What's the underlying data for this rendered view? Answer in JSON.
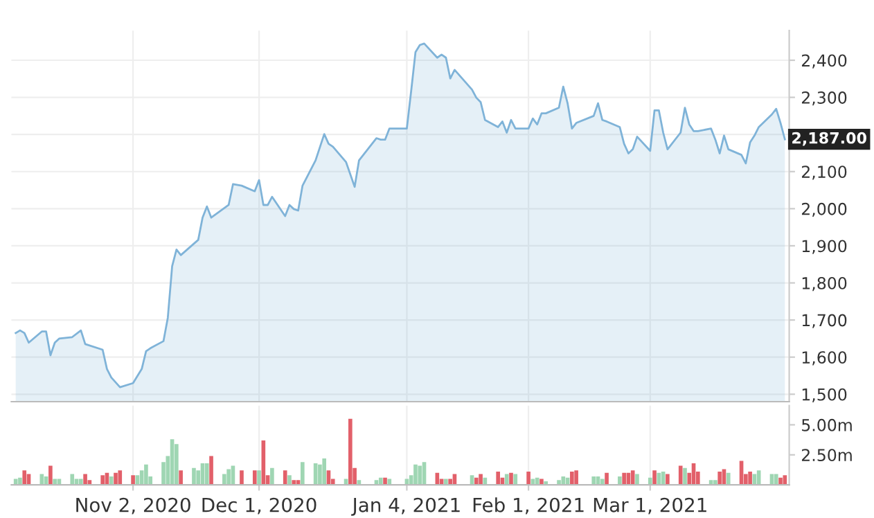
{
  "chart_data": [
    {
      "type": "area",
      "xlim": [
        "2020-10-05",
        "2021-04-02"
      ],
      "xticks": [
        {
          "value": "2020-11-02",
          "label": null
        },
        {
          "value": "2020-12-01",
          "label": null
        },
        {
          "value": "2021-01-04",
          "label": null
        },
        {
          "value": "2021-02-01",
          "label": null
        },
        {
          "value": "2021-03-01",
          "label": null
        }
      ],
      "ylim": [
        1480,
        2480
      ],
      "yticks": [
        {
          "value": 1500,
          "label": "1,500"
        },
        {
          "value": 1600,
          "label": "1,600"
        },
        {
          "value": 1700,
          "label": "1,700"
        },
        {
          "value": 1800,
          "label": "1,800"
        },
        {
          "value": 1900,
          "label": "1,900"
        },
        {
          "value": 2000,
          "label": "2,000"
        },
        {
          "value": 2100,
          "label": "2,100"
        },
        {
          "value": 2200,
          "label": null
        },
        {
          "value": 2300,
          "label": "2,300"
        },
        {
          "value": 2400,
          "label": "2,400"
        }
      ],
      "tick_labels": "y",
      "grid": true,
      "annotations": [
        "2,187.00"
      ],
      "series": [
        {
          "color": "#7fb3d8",
          "x": [
            "2020-10-06",
            "2020-10-07",
            "2020-10-08",
            "2020-10-09",
            "2020-10-12",
            "2020-10-13",
            "2020-10-14",
            "2020-10-15",
            "2020-10-16",
            "2020-10-19",
            "2020-10-21",
            "2020-10-22",
            "2020-10-26",
            "2020-10-27",
            "2020-10-28",
            "2020-10-30",
            "2020-11-02",
            "2020-11-04",
            "2020-11-05",
            "2020-11-06",
            "2020-11-09",
            "2020-11-10",
            "2020-11-11",
            "2020-11-12",
            "2020-11-13",
            "2020-11-17",
            "2020-11-18",
            "2020-11-19",
            "2020-11-20",
            "2020-11-24",
            "2020-11-25",
            "2020-11-27",
            "2020-11-30",
            "2020-12-01",
            "2020-12-02",
            "2020-12-03",
            "2020-12-04",
            "2020-12-07",
            "2020-12-08",
            "2020-12-09",
            "2020-12-10",
            "2020-12-11",
            "2020-12-14",
            "2020-12-16",
            "2020-12-17",
            "2020-12-18",
            "2020-12-21",
            "2020-12-23",
            "2020-12-24",
            "2020-12-28",
            "2020-12-29",
            "2020-12-30",
            "2020-12-31",
            "2021-01-04",
            "2021-01-05",
            "2021-01-06",
            "2021-01-07",
            "2021-01-08",
            "2021-01-11",
            "2021-01-12",
            "2021-01-13",
            "2021-01-14",
            "2021-01-15",
            "2021-01-19",
            "2021-01-20",
            "2021-01-21",
            "2021-01-22",
            "2021-01-25",
            "2021-01-26",
            "2021-01-27",
            "2021-01-28",
            "2021-01-29",
            "2021-02-01",
            "2021-02-02",
            "2021-02-03",
            "2021-02-04",
            "2021-02-05",
            "2021-02-08",
            "2021-02-09",
            "2021-02-10",
            "2021-02-11",
            "2021-02-12",
            "2021-02-16",
            "2021-02-17",
            "2021-02-18",
            "2021-02-19",
            "2021-02-22",
            "2021-02-23",
            "2021-02-24",
            "2021-02-25",
            "2021-02-26",
            "2021-03-01",
            "2021-03-02",
            "2021-03-03",
            "2021-03-04",
            "2021-03-05",
            "2021-03-08",
            "2021-03-09",
            "2021-03-10",
            "2021-03-11",
            "2021-03-12",
            "2021-03-15",
            "2021-03-16",
            "2021-03-17",
            "2021-03-18",
            "2021-03-19",
            "2021-03-22",
            "2021-03-23",
            "2021-03-24",
            "2021-03-25",
            "2021-03-26",
            "2021-03-29",
            "2021-03-30",
            "2021-03-31",
            "2021-04-01"
          ],
          "values": [
            1665,
            1672,
            1665,
            1639,
            1669,
            1669,
            1605,
            1639,
            1650,
            1654,
            1672,
            1635,
            1620,
            1568,
            1545,
            1519,
            1530,
            1568,
            1616,
            1624,
            1643,
            1706,
            1845,
            1890,
            1875,
            1916,
            1976,
            2006,
            1976,
            2010,
            2066,
            2062,
            2047,
            2077,
            2010,
            2010,
            2032,
            1980,
            2010,
            1999,
            1995,
            2062,
            2130,
            2201,
            2175,
            2167,
            2126,
            2059,
            2130,
            2190,
            2186,
            2186,
            2216,
            2216,
            2317,
            2422,
            2441,
            2445,
            2407,
            2415,
            2407,
            2351,
            2374,
            2321,
            2299,
            2287,
            2239,
            2220,
            2235,
            2205,
            2239,
            2216,
            2216,
            2243,
            2227,
            2257,
            2257,
            2272,
            2329,
            2284,
            2216,
            2231,
            2250,
            2284,
            2239,
            2235,
            2220,
            2175,
            2149,
            2160,
            2194,
            2156,
            2265,
            2265,
            2205,
            2160,
            2205,
            2272,
            2227,
            2209,
            2209,
            2216,
            2186,
            2149,
            2197,
            2160,
            2145,
            2122,
            2179,
            2197,
            2220,
            2254,
            2269,
            2231,
            2187
          ]
        }
      ]
    },
    {
      "type": "bar",
      "xlim": [
        "2020-10-05",
        "2021-04-02"
      ],
      "xticks": [
        {
          "value": "2020-11-02",
          "label": "Nov 2, 2020"
        },
        {
          "value": "2020-12-01",
          "label": "Dec 1, 2020"
        },
        {
          "value": "2021-01-04",
          "label": "Jan 4, 2021"
        },
        {
          "value": "2021-02-01",
          "label": "Feb 1, 2021"
        },
        {
          "value": "2021-03-01",
          "label": "Mar 1, 2021"
        }
      ],
      "ylim": [
        0,
        6.6
      ],
      "yticks": [
        {
          "value": 2.5,
          "label": "2.50m"
        },
        {
          "value": 5,
          "label": "5.00m"
        }
      ],
      "grid": "x",
      "x": [
        "2020-10-06",
        "2020-10-07",
        "2020-10-08",
        "2020-10-09",
        "2020-10-12",
        "2020-10-13",
        "2020-10-14",
        "2020-10-15",
        "2020-10-16",
        "2020-10-19",
        "2020-10-20",
        "2020-10-21",
        "2020-10-22",
        "2020-10-23",
        "2020-10-26",
        "2020-10-27",
        "2020-10-28",
        "2020-10-29",
        "2020-10-30",
        "2020-11-02",
        "2020-11-03",
        "2020-11-04",
        "2020-11-05",
        "2020-11-06",
        "2020-11-09",
        "2020-11-10",
        "2020-11-11",
        "2020-11-12",
        "2020-11-13",
        "2020-11-16",
        "2020-11-17",
        "2020-11-18",
        "2020-11-19",
        "2020-11-20",
        "2020-11-23",
        "2020-11-24",
        "2020-11-25",
        "2020-11-27",
        "2020-11-30",
        "2020-12-01",
        "2020-12-02",
        "2020-12-03",
        "2020-12-04",
        "2020-12-07",
        "2020-12-08",
        "2020-12-09",
        "2020-12-10",
        "2020-12-11",
        "2020-12-14",
        "2020-12-15",
        "2020-12-16",
        "2020-12-17",
        "2020-12-18",
        "2020-12-21",
        "2020-12-22",
        "2020-12-23",
        "2020-12-24",
        "2020-12-28",
        "2020-12-29",
        "2020-12-30",
        "2020-12-31",
        "2021-01-04",
        "2021-01-05",
        "2021-01-06",
        "2021-01-07",
        "2021-01-08",
        "2021-01-11",
        "2021-01-12",
        "2021-01-13",
        "2021-01-14",
        "2021-01-15",
        "2021-01-19",
        "2021-01-20",
        "2021-01-21",
        "2021-01-22",
        "2021-01-25",
        "2021-01-26",
        "2021-01-27",
        "2021-01-28",
        "2021-01-29",
        "2021-02-01",
        "2021-02-02",
        "2021-02-03",
        "2021-02-04",
        "2021-02-05",
        "2021-02-08",
        "2021-02-09",
        "2021-02-10",
        "2021-02-11",
        "2021-02-12",
        "2021-02-16",
        "2021-02-17",
        "2021-02-18",
        "2021-02-19",
        "2021-02-22",
        "2021-02-23",
        "2021-02-24",
        "2021-02-25",
        "2021-02-26",
        "2021-03-01",
        "2021-03-02",
        "2021-03-03",
        "2021-03-04",
        "2021-03-05",
        "2021-03-08",
        "2021-03-09",
        "2021-03-10",
        "2021-03-11",
        "2021-03-12",
        "2021-03-15",
        "2021-03-16",
        "2021-03-17",
        "2021-03-18",
        "2021-03-19",
        "2021-03-22",
        "2021-03-23",
        "2021-03-24",
        "2021-03-25",
        "2021-03-26",
        "2021-03-29",
        "2021-03-30",
        "2021-03-31",
        "2021-04-01"
      ],
      "values": [
        0.5,
        0.6,
        1.2,
        0.9,
        0.9,
        0.7,
        1.6,
        0.5,
        0.5,
        0.9,
        0.5,
        0.5,
        0.9,
        0.4,
        0.8,
        1.0,
        0.7,
        1.0,
        1.2,
        0.8,
        0.8,
        1.2,
        1.7,
        0.7,
        1.9,
        2.4,
        3.8,
        3.4,
        1.2,
        1.4,
        1.2,
        1.8,
        1.8,
        2.4,
        0.9,
        1.3,
        1.6,
        1.2,
        1.2,
        1.2,
        3.7,
        0.8,
        1.4,
        1.2,
        0.8,
        0.4,
        0.4,
        1.9,
        1.8,
        1.7,
        2.2,
        1.2,
        0.5,
        0.5,
        5.5,
        1.4,
        0.4,
        0.4,
        0.6,
        0.6,
        0.5,
        0.5,
        0.8,
        1.7,
        1.6,
        1.9,
        1.0,
        0.5,
        0.5,
        0.5,
        0.9,
        0.8,
        0.6,
        0.9,
        0.6,
        1.1,
        0.6,
        0.9,
        1.0,
        0.9,
        1.1,
        0.5,
        0.6,
        0.5,
        0.3,
        0.4,
        0.7,
        0.6,
        1.1,
        1.2,
        0.7,
        0.7,
        0.5,
        1.0,
        0.7,
        1.0,
        1.0,
        1.2,
        0.9,
        0.6,
        1.2,
        1.0,
        1.1,
        0.9,
        1.6,
        1.4,
        1.0,
        1.8,
        1.1,
        0.4,
        0.4,
        1.1,
        1.3,
        1.0,
        2.0,
        0.9,
        1.1,
        0.9,
        1.2,
        0.9,
        0.9,
        0.6,
        0.8
      ],
      "colors": [
        "#9fd6b3",
        "#9fd6b3",
        "#e2606a",
        "#e2606a",
        "#9fd6b3",
        "#9fd6b3",
        "#e2606a",
        "#9fd6b3",
        "#9fd6b3",
        "#9fd6b3",
        "#9fd6b3",
        "#9fd6b3",
        "#e2606a",
        "#e2606a",
        "#e2606a",
        "#e2606a",
        "#9fd6b3",
        "#e2606a",
        "#e2606a",
        "#e2606a",
        "#9fd6b3",
        "#9fd6b3",
        "#9fd6b3",
        "#9fd6b3",
        "#9fd6b3",
        "#9fd6b3",
        "#9fd6b3",
        "#9fd6b3",
        "#e2606a",
        "#9fd6b3",
        "#9fd6b3",
        "#9fd6b3",
        "#9fd6b3",
        "#e2606a",
        "#9fd6b3",
        "#9fd6b3",
        "#9fd6b3",
        "#e2606a",
        "#e2606a",
        "#9fd6b3",
        "#e2606a",
        "#e2606a",
        "#9fd6b3",
        "#e2606a",
        "#9fd6b3",
        "#e2606a",
        "#e2606a",
        "#9fd6b3",
        "#9fd6b3",
        "#9fd6b3",
        "#9fd6b3",
        "#e2606a",
        "#e2606a",
        "#9fd6b3",
        "#e2606a",
        "#e2606a",
        "#9fd6b3",
        "#9fd6b3",
        "#9fd6b3",
        "#e2606a",
        "#9fd6b3",
        "#9fd6b3",
        "#9fd6b3",
        "#9fd6b3",
        "#9fd6b3",
        "#9fd6b3",
        "#e2606a",
        "#e2606a",
        "#9fd6b3",
        "#e2606a",
        "#e2606a",
        "#9fd6b3",
        "#e2606a",
        "#e2606a",
        "#9fd6b3",
        "#e2606a",
        "#e2606a",
        "#9fd6b3",
        "#e2606a",
        "#9fd6b3",
        "#e2606a",
        "#9fd6b3",
        "#9fd6b3",
        "#e2606a",
        "#9fd6b3",
        "#9fd6b3",
        "#9fd6b3",
        "#9fd6b3",
        "#e2606a",
        "#e2606a",
        "#9fd6b3",
        "#9fd6b3",
        "#9fd6b3",
        "#e2606a",
        "#9fd6b3",
        "#e2606a",
        "#e2606a",
        "#e2606a",
        "#9fd6b3",
        "#9fd6b3",
        "#e2606a",
        "#9fd6b3",
        "#9fd6b3",
        "#e2606a",
        "#e2606a",
        "#9fd6b3",
        "#e2606a",
        "#e2606a",
        "#e2606a",
        "#9fd6b3",
        "#9fd6b3",
        "#e2606a",
        "#e2606a",
        "#9fd6b3",
        "#e2606a",
        "#e2606a",
        "#e2606a",
        "#9fd6b3",
        "#9fd6b3",
        "#9fd6b3",
        "#9fd6b3",
        "#e2606a",
        "#e2606a"
      ]
    }
  ]
}
